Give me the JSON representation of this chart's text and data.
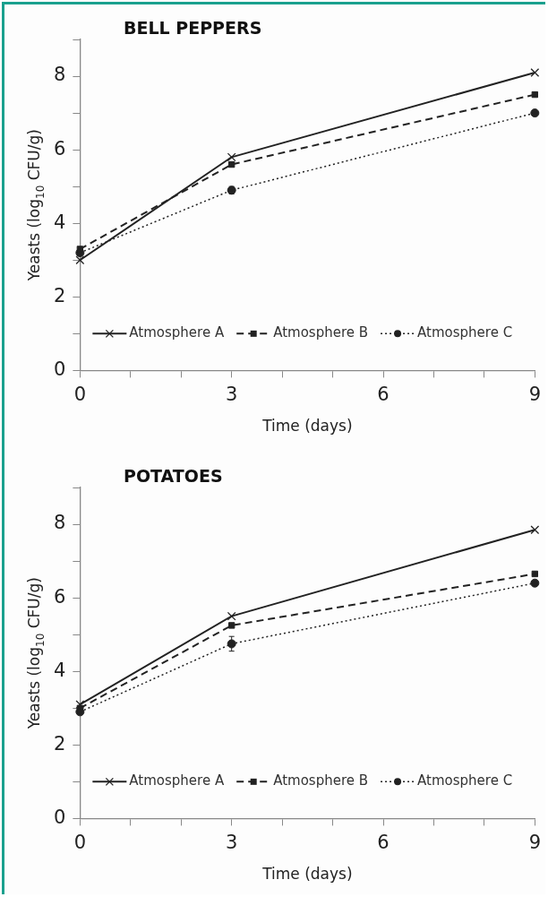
{
  "chart_data": [
    {
      "type": "line",
      "title": "BELL PEPPERS",
      "xlabel": "Time (days)",
      "ylabel": "Yeasts (log$_{10}$ CFU/g)",
      "x": [
        0,
        3,
        9
      ],
      "xlim": [
        0,
        9
      ],
      "xticks": [
        0,
        {
          "value": 1,
          "label": null
        },
        {
          "value": 2,
          "label": null
        },
        3,
        {
          "value": 4,
          "label": null
        },
        {
          "value": 5,
          "label": null
        },
        6,
        {
          "value": 7,
          "label": null
        },
        {
          "value": 8,
          "label": null
        },
        9
      ],
      "ylim": [
        0,
        9
      ],
      "yticks": [
        0,
        {
          "value": 1,
          "label": null
        },
        2,
        {
          "value": 3,
          "label": null
        },
        4,
        {
          "value": 5,
          "label": null
        },
        6,
        {
          "value": 7,
          "label": null
        },
        8,
        {
          "value": 9,
          "label": null
        }
      ],
      "grid": false,
      "legend": "bottom",
      "series": [
        {
          "name": "Atmosphere A",
          "color": "#222222",
          "values": [
            3.0,
            5.8,
            8.1
          ],
          "marker": "cross",
          "line_style": "solid"
        },
        {
          "name": "Atmosphere B",
          "color": "#222222",
          "values": [
            3.3,
            5.6,
            7.5
          ],
          "marker": "square",
          "line_style": "dashed"
        },
        {
          "name": "Atmosphere C",
          "color": "#222222",
          "values": [
            3.2,
            4.9,
            7.0
          ],
          "marker": "circle",
          "line_style": "dotted",
          "errors": [
            null,
            0.1,
            null
          ]
        }
      ]
    },
    {
      "type": "line",
      "title": "POTATOES",
      "xlabel": "Time (days)",
      "ylabel": "Yeasts (log$_{10}$ CFU/g)",
      "x": [
        0,
        3,
        9
      ],
      "xlim": [
        0,
        9
      ],
      "xticks": [
        0,
        {
          "value": 1,
          "label": null
        },
        {
          "value": 2,
          "label": null
        },
        3,
        {
          "value": 4,
          "label": null
        },
        {
          "value": 5,
          "label": null
        },
        6,
        {
          "value": 7,
          "label": null
        },
        {
          "value": 8,
          "label": null
        },
        9
      ],
      "ylim": [
        0,
        9
      ],
      "yticks": [
        0,
        {
          "value": 1,
          "label": null
        },
        2,
        {
          "value": 3,
          "label": null
        },
        4,
        {
          "value": 5,
          "label": null
        },
        6,
        {
          "value": 7,
          "label": null
        },
        8,
        {
          "value": 9,
          "label": null
        }
      ],
      "grid": false,
      "legend": "bottom",
      "series": [
        {
          "name": "Atmosphere A",
          "color": "#222222",
          "values": [
            3.1,
            5.5,
            7.85
          ],
          "marker": "cross",
          "line_style": "solid"
        },
        {
          "name": "Atmosphere B",
          "color": "#222222",
          "values": [
            3.0,
            5.25,
            6.65
          ],
          "marker": "square",
          "line_style": "dashed"
        },
        {
          "name": "Atmosphere C",
          "color": "#222222",
          "values": [
            2.9,
            4.75,
            6.4
          ],
          "marker": "circle",
          "line_style": "dotted",
          "errors": [
            null,
            0.2,
            null
          ]
        }
      ]
    }
  ]
}
